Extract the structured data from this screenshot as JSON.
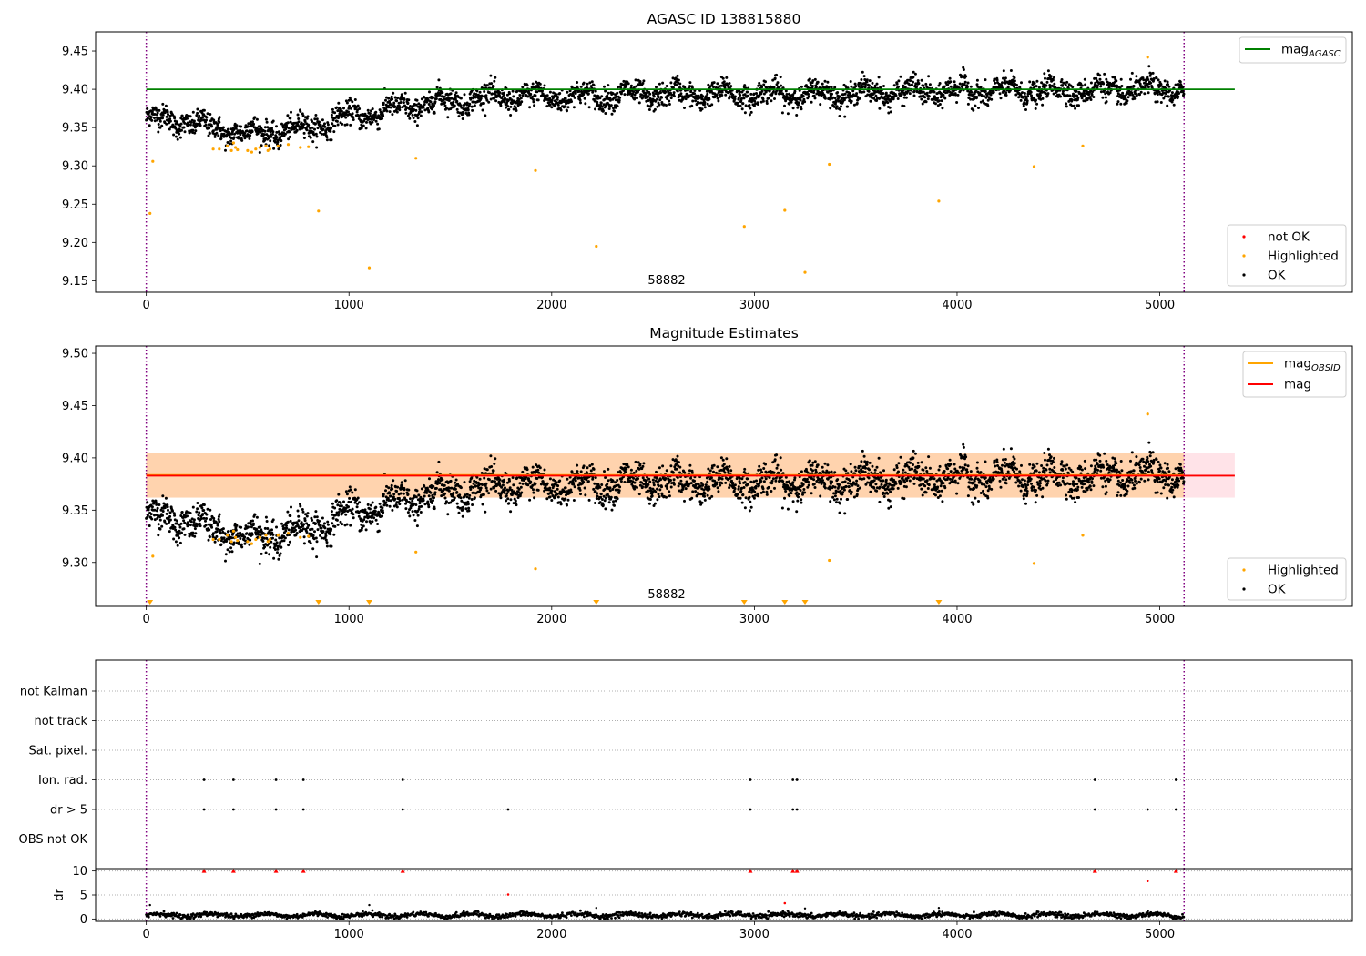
{
  "chart_data": [
    {
      "type": "scatter",
      "title": "AGASC ID 138815880",
      "annotation": "58882",
      "xlabel": "",
      "ylabel": "",
      "xlim": [
        -250,
        5950
      ],
      "ylim": [
        9.135,
        9.475
      ],
      "x_ticks": [
        "0",
        "1000",
        "2000",
        "3000",
        "4000",
        "5000"
      ],
      "x_tick_values": [
        0,
        1000,
        2000,
        3000,
        4000,
        5000
      ],
      "y_ticks": [
        "9.15",
        "9.20",
        "9.25",
        "9.30",
        "9.35",
        "9.40",
        "9.45"
      ],
      "y_tick_values": [
        9.15,
        9.2,
        9.25,
        9.3,
        9.35,
        9.4,
        9.45
      ],
      "vlines": [
        0,
        5120
      ],
      "hlines": [
        {
          "name": "mag_AGASC",
          "value": 9.4,
          "x_range": [
            0,
            5370
          ],
          "color": "#008000"
        }
      ],
      "legends": [
        {
          "position": "upper-right",
          "entries": [
            {
              "label": "mag",
              "sub": "AGASC",
              "kind": "line",
              "color": "#008000"
            }
          ]
        },
        {
          "position": "lower-right",
          "entries": [
            {
              "label": "not OK",
              "kind": "dot",
              "color": "#ff0000"
            },
            {
              "label": "Highlighted",
              "kind": "dot",
              "color": "#ffa500"
            },
            {
              "label": "OK",
              "kind": "dot",
              "color": "#000000"
            }
          ]
        }
      ],
      "highlighted_x": [
        18,
        32,
        330,
        360,
        400,
        420,
        430,
        440,
        450,
        500,
        520,
        540,
        560,
        590,
        600,
        610,
        650,
        700,
        760,
        800,
        850,
        1100,
        1330,
        1920,
        2220,
        2950,
        3150,
        3250,
        3370,
        3910,
        4380,
        4620,
        4940
      ],
      "highlighted_y": [
        9.238,
        9.306,
        9.322,
        9.322,
        9.326,
        9.32,
        9.33,
        9.324,
        9.321,
        9.32,
        9.318,
        9.322,
        9.324,
        9.326,
        9.32,
        9.322,
        9.326,
        9.328,
        9.324,
        9.325,
        9.241,
        9.167,
        9.31,
        9.294,
        9.195,
        9.221,
        9.242,
        9.161,
        9.302,
        9.254,
        9.299,
        9.326,
        9.442
      ],
      "ok_trend": {
        "x": [
          0,
          100,
          200,
          300,
          400,
          500,
          600,
          700,
          800,
          900,
          1000,
          1100,
          1200,
          1300,
          1400,
          1500,
          1600,
          1700,
          2000,
          2500,
          3000,
          3500,
          4000,
          4500,
          5000,
          5120
        ],
        "y": [
          9.362,
          9.36,
          9.358,
          9.35,
          9.347,
          9.343,
          9.344,
          9.347,
          9.35,
          9.357,
          9.365,
          9.368,
          9.373,
          9.378,
          9.382,
          9.385,
          9.387,
          9.39,
          9.39,
          9.393,
          9.393,
          9.395,
          9.398,
          9.398,
          9.4,
          9.4
        ]
      }
    },
    {
      "type": "scatter",
      "title": "Magnitude Estimates",
      "annotation": "58882",
      "xlabel": "",
      "ylabel": "",
      "xlim": [
        -250,
        5950
      ],
      "ylim": [
        9.258,
        9.507
      ],
      "x_ticks": [
        "0",
        "1000",
        "2000",
        "3000",
        "4000",
        "5000"
      ],
      "x_tick_values": [
        0,
        1000,
        2000,
        3000,
        4000,
        5000
      ],
      "y_ticks": [
        "9.30",
        "9.35",
        "9.40",
        "9.45",
        "9.50"
      ],
      "y_tick_values": [
        9.3,
        9.35,
        9.4,
        9.45,
        9.5
      ],
      "vlines": [
        0,
        5120
      ],
      "bands": [
        {
          "name": "mag range",
          "y0": 9.362,
          "y1": 9.405,
          "x_range": [
            0,
            5370
          ],
          "color": "#ffc0cb",
          "opacity": 0.45
        },
        {
          "name": "mag_OBSID range",
          "y0": 9.362,
          "y1": 9.405,
          "x_range": [
            0,
            5120
          ],
          "color": "#ffa500",
          "opacity": 0.25
        }
      ],
      "hlines": [
        {
          "name": "mag_OBSID",
          "value": 9.3835,
          "x_range": [
            0,
            5120
          ],
          "color": "#ffa500"
        },
        {
          "name": "mag",
          "value": 9.383,
          "x_range": [
            0,
            5370
          ],
          "color": "#ff0000"
        }
      ],
      "below_range_markers_x": [
        18,
        850,
        1100,
        2220,
        2950,
        3150,
        3250,
        3910
      ],
      "legends": [
        {
          "position": "upper-right",
          "entries": [
            {
              "label": "mag",
              "sub": "OBSID",
              "kind": "line",
              "color": "#ffa500"
            },
            {
              "label": "mag",
              "kind": "line",
              "color": "#ff0000"
            }
          ]
        },
        {
          "position": "lower-right",
          "entries": [
            {
              "label": "Highlighted",
              "kind": "dot",
              "color": "#ffa500"
            },
            {
              "label": "OK",
              "kind": "dot",
              "color": "#000000"
            }
          ]
        }
      ]
    },
    {
      "type": "scatter",
      "title": "",
      "xlabel": "",
      "ylabel": "",
      "xlim": [
        -250,
        5950
      ],
      "categories": [
        "not Kalman",
        "not track",
        "Sat. pixel.",
        "Ion. rad.",
        "dr > 5",
        "OBS not OK"
      ],
      "vlines": [
        0,
        5120
      ],
      "flags": {
        "Ion. rad.": [
          285,
          430,
          640,
          775,
          1265,
          2980,
          3190,
          3210,
          4680,
          5080
        ],
        "dr > 5": [
          285,
          430,
          640,
          775,
          1265,
          1785,
          2980,
          3190,
          3210,
          4680,
          4940,
          5080
        ]
      }
    },
    {
      "type": "scatter",
      "title": "",
      "xlabel": "",
      "ylabel": "dr",
      "xlim": [
        -250,
        5950
      ],
      "ylim": [
        -0.5,
        10.5
      ],
      "y_ticks": [
        "0",
        "5",
        "10"
      ],
      "y_tick_values": [
        0,
        5,
        10
      ],
      "x_ticks": [
        "0",
        "1000",
        "2000",
        "3000",
        "4000",
        "5000"
      ],
      "x_tick_values": [
        0,
        1000,
        2000,
        3000,
        4000,
        5000
      ],
      "vlines": [
        0,
        5120
      ],
      "capped_at_10_x": [
        285,
        430,
        640,
        775,
        1265,
        2980,
        3190,
        3210,
        4680,
        5080
      ],
      "red_points": {
        "x": [
          1785,
          3150,
          4940
        ],
        "y": [
          5.1,
          3.3,
          7.9
        ]
      },
      "outliers": {
        "x": [
          18,
          1100,
          2220,
          3250,
          3910
        ],
        "y": [
          2.9,
          2.9,
          2.3,
          2.2,
          2.3
        ]
      }
    }
  ]
}
